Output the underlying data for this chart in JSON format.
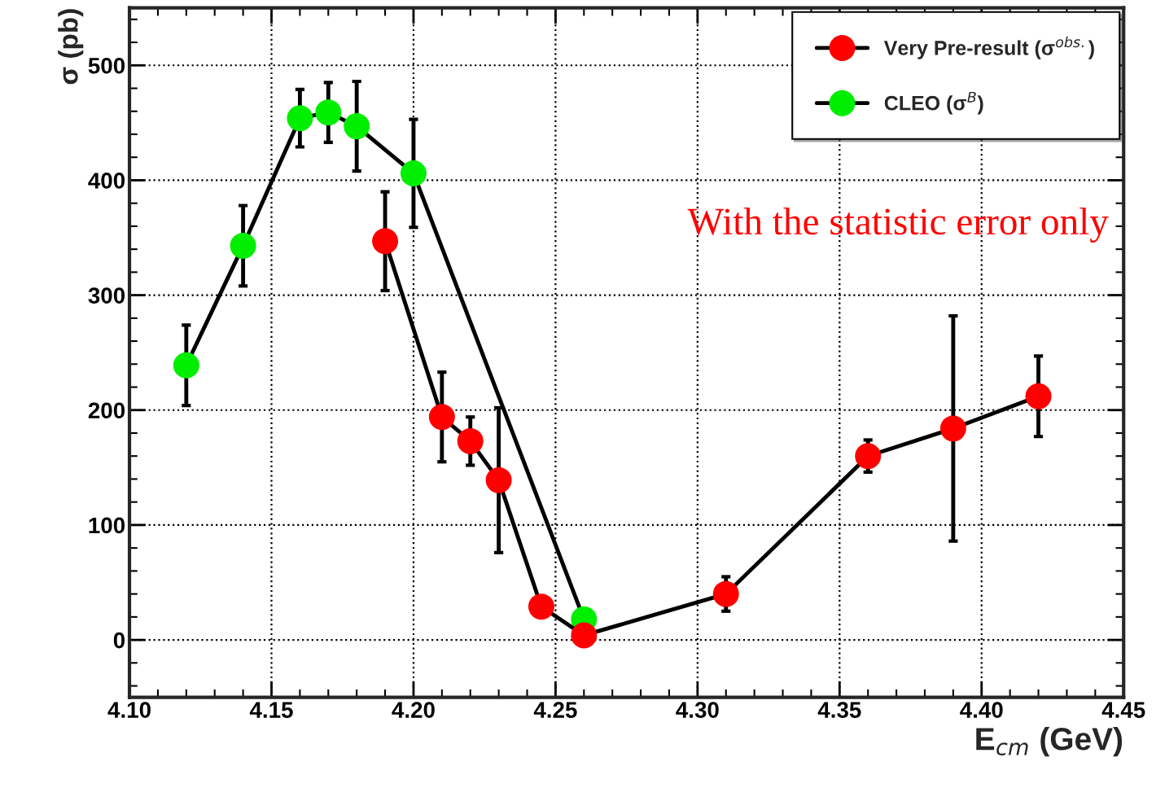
{
  "chart_data": {
    "type": "line",
    "xlabel": "E$_{cm}$ (GeV)",
    "ylabel": "σ (pb)",
    "series": [
      {
        "name": "Very Pre-result (σ$^{obs.}$)",
        "color": "#ff0000",
        "x": [
          4.19,
          4.21,
          4.22,
          4.23,
          4.245,
          4.26,
          4.31,
          4.36,
          4.39,
          4.42
        ],
        "values": [
          347,
          194,
          173,
          139,
          29,
          4,
          40,
          160,
          184,
          212
        ],
        "errors": [
          43,
          39,
          21,
          63,
          null,
          null,
          15,
          14,
          98,
          35
        ]
      },
      {
        "name": "CLEO (σ$^{B}$)",
        "color": "#00ee00",
        "x": [
          4.12,
          4.14,
          4.16,
          4.17,
          4.18,
          4.2,
          4.26
        ],
        "values": [
          239,
          343,
          454,
          459,
          447,
          406,
          18
        ],
        "errors": [
          35,
          35,
          25,
          26,
          39,
          47,
          null
        ]
      }
    ],
    "xlim": [
      4.1,
      4.45
    ],
    "ylim": [
      -50,
      550
    ],
    "xticks": [
      {
        "value": 4.1,
        "label": "4.10"
      },
      4.15,
      {
        "value": 4.2,
        "label": "4.20"
      },
      4.25,
      {
        "value": 4.3,
        "label": "4.30"
      },
      4.35,
      {
        "value": 4.4,
        "label": "4.40"
      },
      4.45
    ],
    "yticks": [
      0,
      100,
      200,
      300,
      400,
      500
    ],
    "grid": true,
    "legend": "top right",
    "marker": "circle",
    "line_style": "solid",
    "annotations": [
      "With the statistic error only"
    ]
  }
}
